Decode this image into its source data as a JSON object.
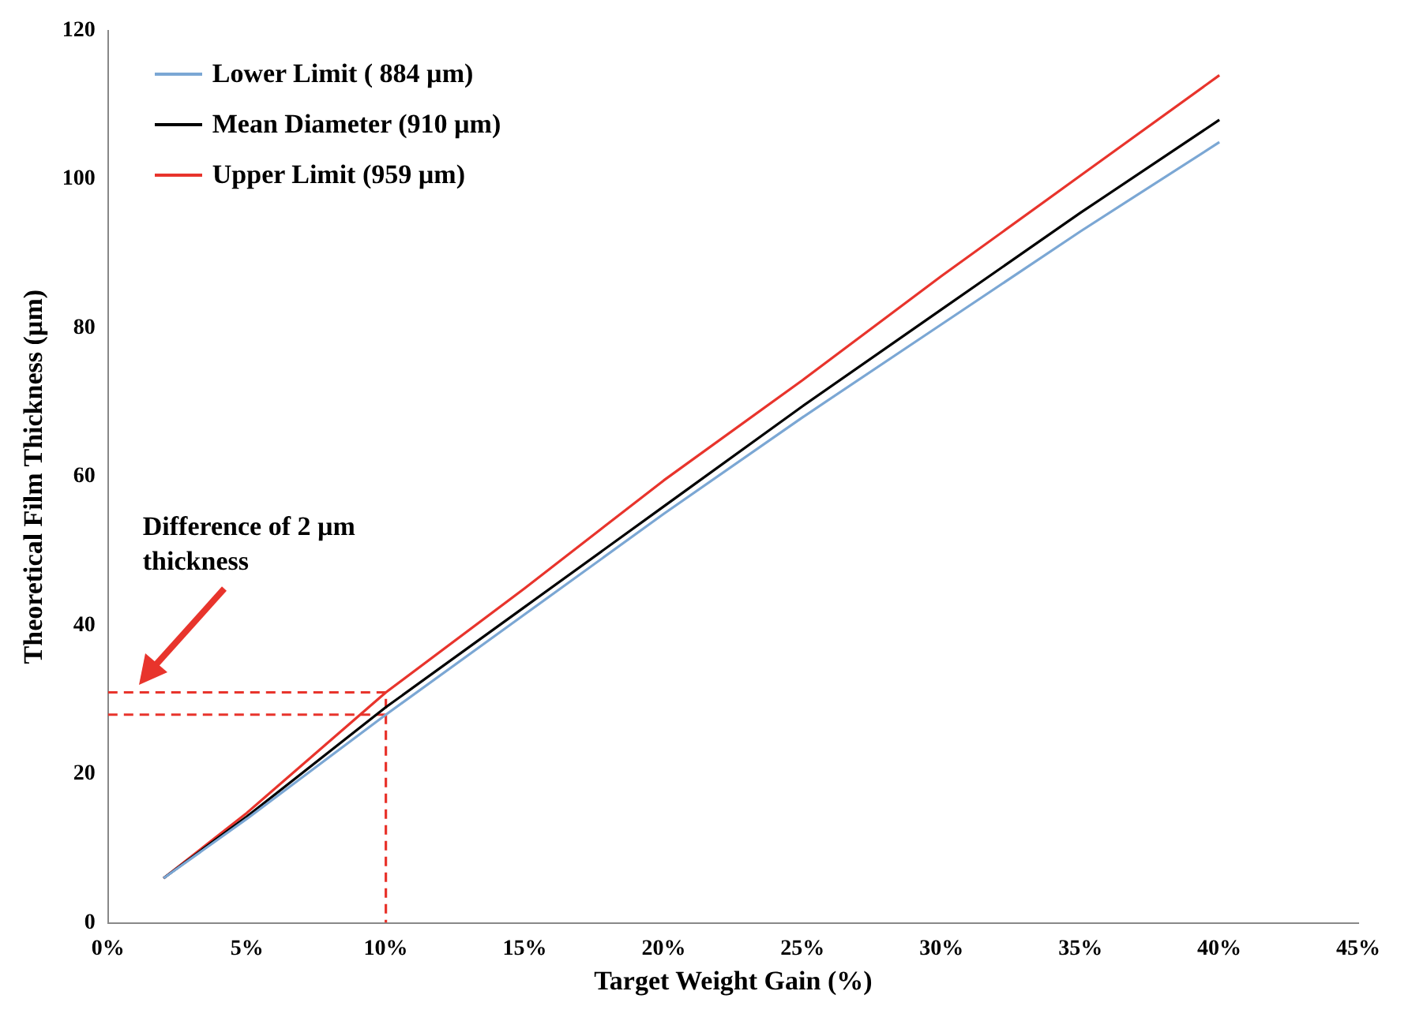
{
  "chart_data": {
    "type": "line",
    "xlabel": "Target Weight Gain (%)",
    "ylabel": "Theoretical Film Thickness (µm)",
    "xlim": [
      0,
      45
    ],
    "xticks": [
      {
        "value": 0,
        "label": "0%"
      },
      {
        "value": 5,
        "label": "5%"
      },
      {
        "value": 10,
        "label": "10%"
      },
      {
        "value": 15,
        "label": "15%"
      },
      {
        "value": 20,
        "label": "20%"
      },
      {
        "value": 25,
        "label": "25%"
      },
      {
        "value": 30,
        "label": "30%"
      },
      {
        "value": 35,
        "label": "35%"
      },
      {
        "value": 40,
        "label": "40%"
      },
      {
        "value": 45,
        "label": "45%"
      }
    ],
    "ylim": [
      0,
      120
    ],
    "yticks": [
      0,
      20,
      40,
      60,
      80,
      100,
      120
    ],
    "grid": false,
    "legend": "top left",
    "marker": "none",
    "annotations": [
      "Difference of 2 µm thickness"
    ],
    "series": [
      {
        "name": "Lower Limit ( 884 µm)",
        "color": "#7ba7d4",
        "x": [
          2,
          5,
          10,
          15,
          20,
          25,
          30,
          35,
          40
        ],
        "values": [
          6,
          14,
          28,
          41.5,
          55,
          68,
          80.5,
          93,
          105
        ]
      },
      {
        "name": "Mean Diameter (910 µm)",
        "color": "#000000",
        "x": [
          2,
          5,
          10,
          15,
          20,
          25,
          30,
          35,
          40
        ],
        "values": [
          6,
          14.3,
          29,
          42.5,
          56,
          69.5,
          82.5,
          95.5,
          108
        ]
      },
      {
        "name": "Upper Limit (959 µm)",
        "color": "#e8342c",
        "x": [
          2,
          5,
          10,
          15,
          20,
          25,
          30,
          35,
          40
        ],
        "values": [
          6,
          14.8,
          31,
          45,
          59.5,
          73,
          87,
          100.5,
          114
        ]
      },
      {
        "color": "#e8342c",
        "line_style": "dashed",
        "x": [
          0,
          10,
          10
        ],
        "values": [
          31,
          31,
          0
        ]
      },
      {
        "color": "#e8342c",
        "line_style": "dashed",
        "x": [
          0,
          10
        ],
        "values": [
          28,
          28
        ]
      }
    ]
  }
}
